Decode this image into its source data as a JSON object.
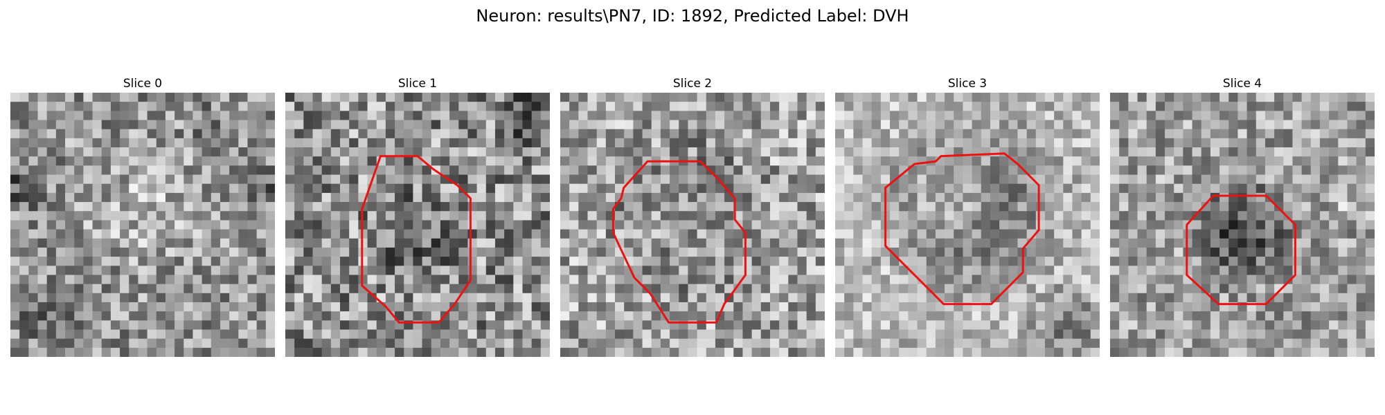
{
  "figure": {
    "title": "Neuron: results\\PN7, ID: 1892, Predicted Label: DVH"
  },
  "colors": {
    "background": "#ffffff",
    "contour": "#ee1111"
  },
  "panels": [
    {
      "title": "Slice 0",
      "has_contour": false
    },
    {
      "title": "Slice 1",
      "has_contour": true
    },
    {
      "title": "Slice 2",
      "has_contour": true
    },
    {
      "title": "Slice 3",
      "has_contour": true
    },
    {
      "title": "Slice 4",
      "has_contour": true
    }
  ]
}
